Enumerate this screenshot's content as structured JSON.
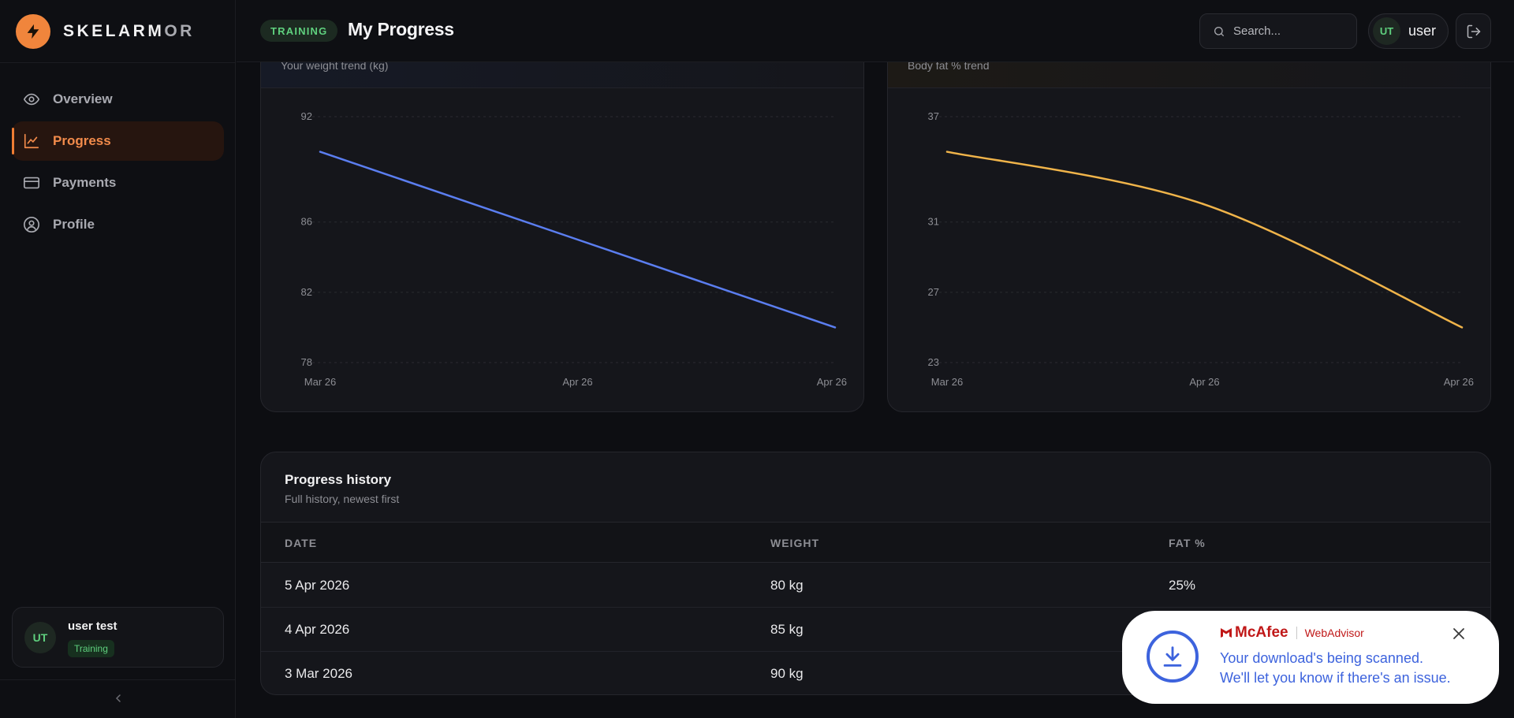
{
  "app": {
    "brand_primary": "SKELARM",
    "brand_dim": "OR",
    "logo_icon": "bolt-icon",
    "accent_color": "#f0853c"
  },
  "sidebar": {
    "items": [
      {
        "label": "Overview",
        "icon": "eye-icon",
        "active": false
      },
      {
        "label": "Progress",
        "icon": "chart-line-icon",
        "active": true
      },
      {
        "label": "Payments",
        "icon": "credit-card-icon",
        "active": false
      },
      {
        "label": "Profile",
        "icon": "user-circle-icon",
        "active": false
      }
    ],
    "user": {
      "initials": "UT",
      "name": "user test",
      "role": "Training"
    }
  },
  "header": {
    "badge": "TRAINING",
    "title": "My Progress",
    "search_placeholder": "Search...",
    "user_initials": "UT",
    "user_name": "user"
  },
  "charts": {
    "weight": {
      "subtitle": "Your weight trend (kg)",
      "color": "#5b7ef0"
    },
    "fat": {
      "subtitle": "Body fat % trend",
      "color": "#f0b44a"
    }
  },
  "chart_data": [
    {
      "type": "line",
      "title": "",
      "subtitle": "Your weight trend (kg)",
      "x": [
        "Mar 26",
        "Apr 26",
        "Apr 26"
      ],
      "xlabel": "",
      "ylabel": "",
      "yticks": [
        92,
        86,
        82,
        78
      ],
      "ylim": [
        78,
        92
      ],
      "grid": true,
      "series": [
        {
          "values": [
            90,
            85,
            80
          ]
        }
      ]
    },
    {
      "type": "line",
      "title": "",
      "subtitle": "Body fat % trend",
      "x": [
        "Mar 26",
        "Apr 26",
        "Apr 26"
      ],
      "xlabel": "",
      "ylabel": "",
      "yticks": [
        37,
        31,
        27,
        23
      ],
      "ylim": [
        23,
        37
      ],
      "grid": true,
      "series": [
        {
          "values": [
            35,
            32,
            25
          ]
        }
      ]
    }
  ],
  "history": {
    "title": "Progress history",
    "subtitle": "Full history, newest first",
    "columns": [
      "DATE",
      "WEIGHT",
      "FAT %"
    ],
    "rows": [
      [
        "5 Apr 2026",
        "80 kg",
        "25%"
      ],
      [
        "4 Apr 2026",
        "85 kg",
        ""
      ],
      [
        "3 Mar 2026",
        "90 kg",
        ""
      ]
    ]
  },
  "toast": {
    "brand": "McAfee",
    "product": "WebAdvisor",
    "line1": "Your download's being scanned.",
    "line2": "We'll let you know if there's an issue."
  }
}
